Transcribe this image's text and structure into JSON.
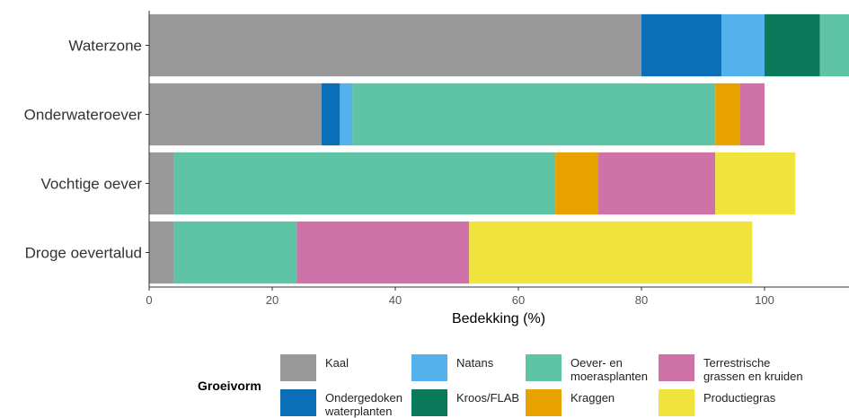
{
  "chart_data": {
    "type": "bar",
    "orientation": "horizontal",
    "stacked": true,
    "categories": [
      "Waterzone",
      "Onderwateroever",
      "Vochtige oever",
      "Droge oevertalud"
    ],
    "xlabel": "Bedekking (%)",
    "ylabel": "",
    "xlim": [
      0,
      114
    ],
    "xticks": [
      0,
      20,
      40,
      60,
      80,
      100
    ],
    "grid": false,
    "legend": {
      "title": "Groeivorm",
      "position": "bottom"
    },
    "series": [
      {
        "name": "Kaal",
        "color": "#999999",
        "values": [
          80,
          28,
          4,
          4
        ]
      },
      {
        "name": "Ondergedoken waterplanten",
        "color": "#0b6fb8",
        "values": [
          13,
          3,
          0,
          0
        ]
      },
      {
        "name": "Natans",
        "color": "#55b1ec",
        "values": [
          7,
          2,
          0,
          0
        ]
      },
      {
        "name": "Kroos/FLAB",
        "color": "#0a7a5a",
        "values": [
          9,
          0,
          0,
          0
        ]
      },
      {
        "name": "Oever- en moerasplanten",
        "color": "#5ec4a5",
        "values": [
          5,
          59,
          62,
          20
        ]
      },
      {
        "name": "Kraggen",
        "color": "#e8a200",
        "values": [
          0,
          4,
          7,
          0
        ]
      },
      {
        "name": "Terrestrische grassen en kruiden",
        "color": "#cf72a8",
        "values": [
          0,
          4,
          19,
          28
        ]
      },
      {
        "name": "Productiegras",
        "color": "#f0e43c",
        "values": [
          0,
          0,
          13,
          46
        ]
      }
    ]
  },
  "legend": {
    "title": "Groeivorm",
    "items": [
      {
        "label": "Kaal",
        "color": "#999999"
      },
      {
        "label": "Ondergedoken\nwaterplanten",
        "color": "#0b6fb8"
      },
      {
        "label": "Natans",
        "color": "#55b1ec"
      },
      {
        "label": "Kroos/FLAB",
        "color": "#0a7a5a"
      },
      {
        "label": "Oever- en\nmoerasplanten",
        "color": "#5ec4a5"
      },
      {
        "label": "Kraggen",
        "color": "#e8a200"
      },
      {
        "label": "Terrestrische\ngrassen en kruiden",
        "color": "#cf72a8"
      },
      {
        "label": "Productiegras",
        "color": "#f0e43c"
      }
    ]
  }
}
